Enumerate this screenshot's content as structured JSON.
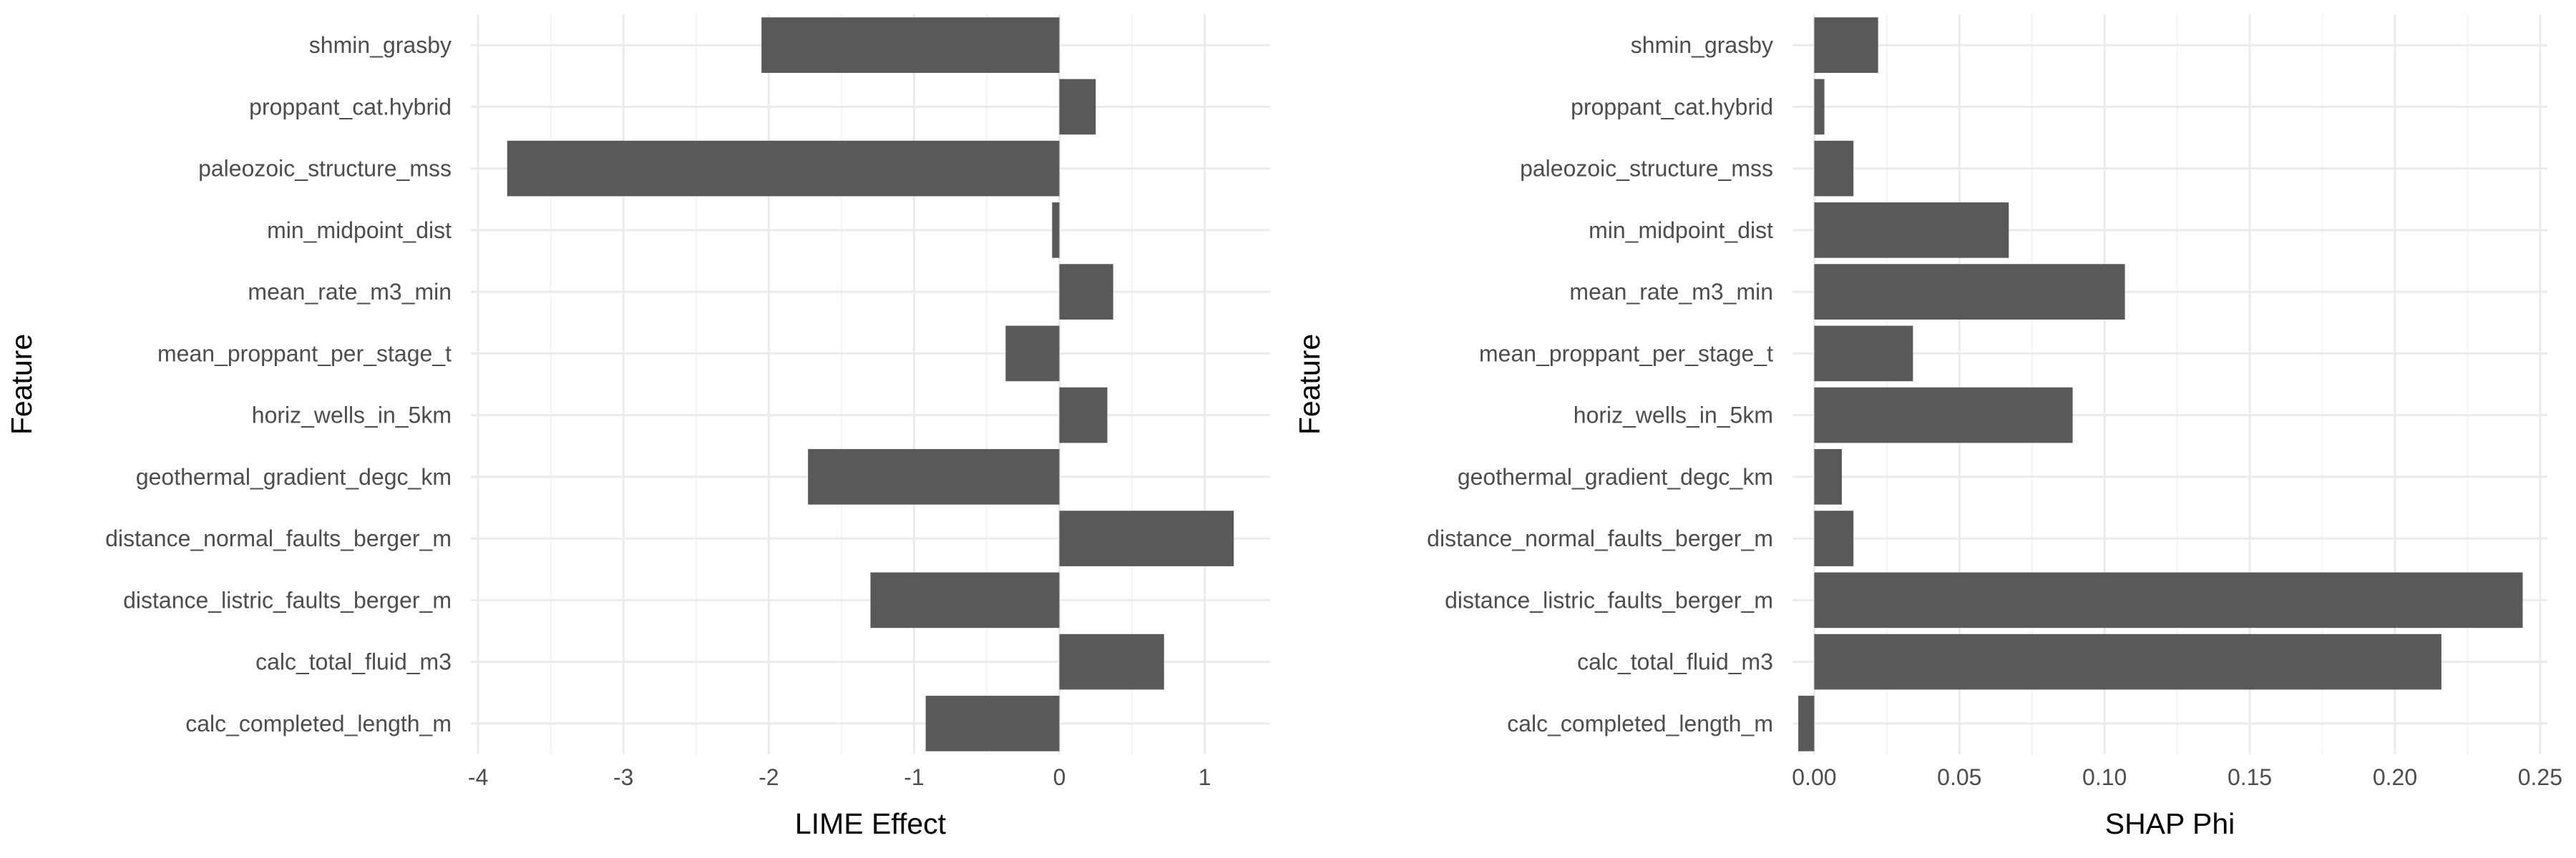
{
  "chart_data": [
    {
      "type": "bar",
      "orientation": "horizontal",
      "ylabel": "Feature",
      "xlabel": "LIME Effect",
      "categories": [
        "shmin_grasby",
        "proppant_cat.hybrid",
        "paleozoic_structure_mss",
        "min_midpoint_dist",
        "mean_rate_m3_min",
        "mean_proppant_per_stage_t",
        "horiz_wells_in_5km",
        "geothermal_gradient_degc_km",
        "distance_normal_faults_berger_m",
        "distance_listric_faults_berger_m",
        "calc_total_fluid_m3",
        "calc_completed_length_m"
      ],
      "values": [
        -2.05,
        0.25,
        -3.8,
        -0.05,
        0.37,
        -0.37,
        0.33,
        -1.73,
        1.2,
        -1.3,
        0.72,
        -0.92
      ],
      "xlim": [
        -4.05,
        1.45
      ],
      "xticks": [
        -4,
        -3,
        -2,
        -1,
        0,
        1
      ],
      "xtick_labels": [
        "-4",
        "-3",
        "-2",
        "-1",
        "0",
        "1"
      ],
      "grid": true
    },
    {
      "type": "bar",
      "orientation": "horizontal",
      "ylabel": "Feature",
      "xlabel": "SHAP Phi",
      "categories": [
        "shmin_grasby",
        "proppant_cat.hybrid",
        "paleozoic_structure_mss",
        "min_midpoint_dist",
        "mean_rate_m3_min",
        "mean_proppant_per_stage_t",
        "horiz_wells_in_5km",
        "geothermal_gradient_degc_km",
        "distance_normal_faults_berger_m",
        "distance_listric_faults_berger_m",
        "calc_total_fluid_m3",
        "calc_completed_length_m"
      ],
      "values": [
        0.022,
        0.0035,
        0.0135,
        0.067,
        0.107,
        0.034,
        0.089,
        0.0095,
        0.0135,
        0.244,
        0.216,
        -0.0055
      ],
      "xlim": [
        -0.0075,
        0.2525
      ],
      "xticks": [
        0,
        0.05,
        0.1,
        0.15,
        0.2,
        0.25
      ],
      "xtick_labels": [
        "0.00",
        "0.05",
        "0.10",
        "0.15",
        "0.20",
        "0.25"
      ],
      "grid": true
    }
  ],
  "colors": {
    "bar": "#595959",
    "grid_major": "#ebebeb",
    "grid_minor": "#f4f4f4",
    "tick_text": "#4d4d4d",
    "title_text": "#000000"
  }
}
